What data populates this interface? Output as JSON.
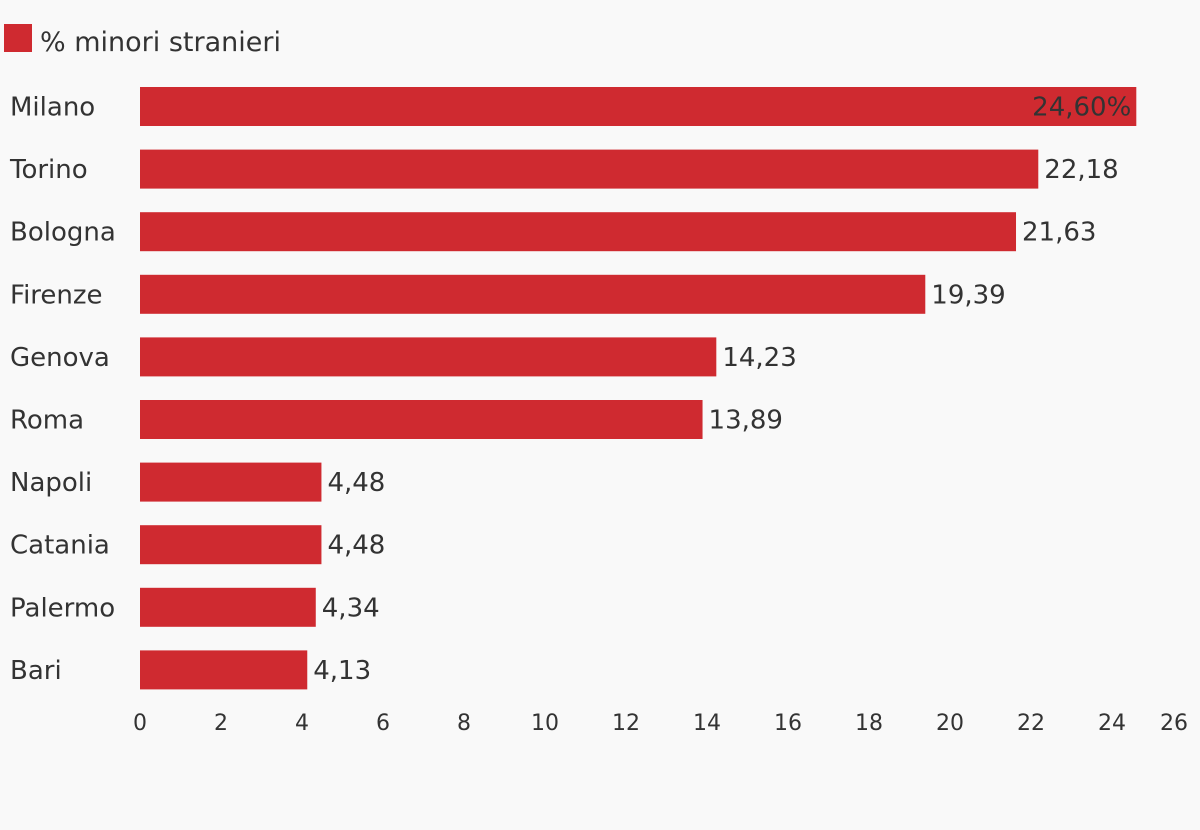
{
  "chart_data": {
    "type": "bar",
    "orientation": "horizontal",
    "legend": {
      "label": "% minori stranieri",
      "placement": "top-left"
    },
    "categories": [
      "Milano",
      "Torino",
      "Bologna",
      "Firenze",
      "Genova",
      "Roma",
      "Napoli",
      "Catania",
      "Palermo",
      "Bari"
    ],
    "series": [
      {
        "name": "% minori stranieri",
        "color": "#cf2a30",
        "values": [
          24.6,
          22.18,
          21.63,
          19.39,
          14.23,
          13.89,
          4.48,
          4.48,
          4.34,
          4.13
        ],
        "value_labels": [
          "24,60%",
          "22,18",
          "21,63",
          "19,39",
          "14,23",
          "13,89",
          "4,48",
          "4,48",
          "4,34",
          "4,13"
        ]
      }
    ],
    "x_ticks": [
      "0",
      "2",
      "4",
      "6",
      "8",
      "10",
      "12",
      "14",
      "16",
      "18",
      "20",
      "22",
      "24",
      "26"
    ],
    "xlim": [
      0,
      26
    ],
    "grid": false
  }
}
